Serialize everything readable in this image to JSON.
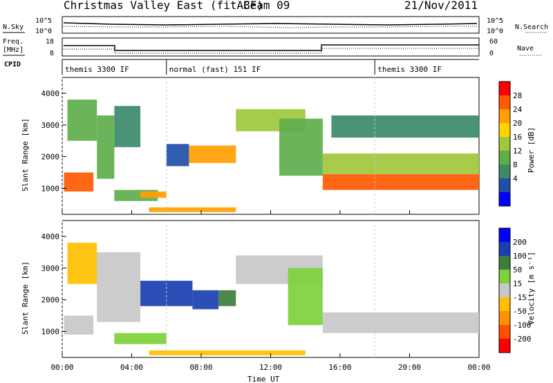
{
  "header": {
    "radar": "Christmas Valley East (fitACF)",
    "beam": "Beam 09",
    "date": "21/Nov/2011"
  },
  "labels": {
    "nsky": "N.Sky",
    "nsearch": "N.Search",
    "freq_line1": "Freq.",
    "freq_line2": "[MHz]",
    "nave": "Nave",
    "cpid": "CPID",
    "noise_left_ticks": [
      "10^5",
      "10^0"
    ],
    "noise_right_ticks": [
      "10^5",
      "10^0"
    ],
    "freq_ticks": [
      "18",
      "8"
    ],
    "nave_ticks": [
      "60",
      "0"
    ]
  },
  "cpid_segments": [
    {
      "start": 0.0,
      "end": 6.0,
      "label": "themis 3300 IF"
    },
    {
      "start": 6.0,
      "end": 18.0,
      "label": "normal (fast) 151 IF"
    },
    {
      "start": 18.0,
      "end": 24.0,
      "label": "themis 3300 IF"
    }
  ],
  "colors": {
    "power_scale": [
      "#0000ff",
      "#1f4fa8",
      "#3c8a6a",
      "#5fae4c",
      "#a0c83c",
      "#ffd500",
      "#ffa000",
      "#ff5a00",
      "#ff0000"
    ],
    "velocity_scale": [
      "#0000ff",
      "#1a3fb0",
      "#3c7f3c",
      "#7ed13a",
      "#c8c8c8",
      "#ffc000",
      "#ff9000",
      "#ff5000",
      "#ff0000"
    ],
    "ground_scatter": "#b4b4b4"
  },
  "chart_data": [
    {
      "type": "heatmap",
      "name": "power",
      "xlabel": "Time UT",
      "ylabel": "Slant Range [km]",
      "xlim": [
        0,
        24
      ],
      "ylim": [
        180,
        4500
      ],
      "xticks": [
        "00:00",
        "04:00",
        "08:00",
        "12:00",
        "16:00",
        "20:00",
        "00:00"
      ],
      "yticks": [
        1000,
        2000,
        3000,
        4000
      ],
      "colorbar_label": "Power [dB]",
      "colorbar_ticks": [
        4,
        8,
        12,
        16,
        20,
        24,
        28
      ],
      "colorbar_range": [
        0,
        30
      ],
      "regions": [
        {
          "t0": 0.1,
          "t1": 1.8,
          "r0": 900,
          "r1": 1500,
          "value": 24
        },
        {
          "t0": 0.3,
          "t1": 2.0,
          "r0": 2500,
          "r1": 3800,
          "value": 12
        },
        {
          "t0": 2.0,
          "t1": 3.0,
          "r0": 1300,
          "r1": 3300,
          "value": 10
        },
        {
          "t0": 3.0,
          "t1": 4.5,
          "r0": 2300,
          "r1": 3600,
          "value": 8
        },
        {
          "t0": 3.0,
          "t1": 5.5,
          "r0": 600,
          "r1": 950,
          "value": 10
        },
        {
          "t0": 4.5,
          "t1": 6.0,
          "r0": 700,
          "r1": 900,
          "value": 20
        },
        {
          "t0": 5.0,
          "t1": 10.0,
          "r0": 250,
          "r1": 400,
          "value": 22
        },
        {
          "t0": 6.0,
          "t1": 7.3,
          "r0": 1700,
          "r1": 2400,
          "value": 6
        },
        {
          "t0": 7.3,
          "t1": 10.0,
          "r0": 1800,
          "r1": 2350,
          "value": 22
        },
        {
          "t0": 10.0,
          "t1": 14.0,
          "r0": 2800,
          "r1": 3500,
          "value": 16
        },
        {
          "t0": 12.5,
          "t1": 15.0,
          "r0": 1400,
          "r1": 3200,
          "value": 12
        },
        {
          "t0": 15.0,
          "t1": 24.0,
          "r0": 950,
          "r1": 1450,
          "value": 26
        },
        {
          "t0": 15.0,
          "t1": 24.0,
          "r0": 1450,
          "r1": 2100,
          "value": 14
        },
        {
          "t0": 15.5,
          "t1": 24.0,
          "r0": 2600,
          "r1": 3300,
          "value": 8
        }
      ]
    },
    {
      "type": "heatmap",
      "name": "velocity",
      "xlabel": "Time UT",
      "ylabel": "Slant Range [km]",
      "xlim": [
        0,
        24
      ],
      "ylim": [
        180,
        4500
      ],
      "xticks": [
        "00:00",
        "04:00",
        "08:00",
        "12:00",
        "16:00",
        "20:00",
        "00:00"
      ],
      "yticks": [
        1000,
        2000,
        3000,
        4000
      ],
      "colorbar_label": "Velocity [m s⁻¹]",
      "colorbar_ticks": [
        200,
        100,
        50,
        15,
        -15,
        -50,
        -100,
        -200
      ],
      "colorbar_range": [
        -250,
        250
      ],
      "regions": [
        {
          "t0": 0.1,
          "t1": 1.8,
          "r0": 900,
          "r1": 1500,
          "value": 0
        },
        {
          "t0": 0.3,
          "t1": 2.0,
          "r0": 2500,
          "r1": 3800,
          "value": -20
        },
        {
          "t0": 2.0,
          "t1": 4.5,
          "r0": 1300,
          "r1": 3500,
          "value": 0
        },
        {
          "t0": 3.0,
          "t1": 6.0,
          "r0": 600,
          "r1": 950,
          "value": 30
        },
        {
          "t0": 5.0,
          "t1": 14.0,
          "r0": 250,
          "r1": 400,
          "value": -30
        },
        {
          "t0": 4.5,
          "t1": 7.5,
          "r0": 1800,
          "r1": 2600,
          "value": 180
        },
        {
          "t0": 7.5,
          "t1": 9.0,
          "r0": 1700,
          "r1": 2300,
          "value": 120
        },
        {
          "t0": 9.0,
          "t1": 10.0,
          "r0": 1800,
          "r1": 2300,
          "value": 60
        },
        {
          "t0": 10.0,
          "t1": 15.0,
          "r0": 2500,
          "r1": 3400,
          "value": 0
        },
        {
          "t0": 13.0,
          "t1": 15.0,
          "r0": 1200,
          "r1": 3000,
          "value": 40
        },
        {
          "t0": 15.0,
          "t1": 24.0,
          "r0": 950,
          "r1": 1600,
          "value": 0
        }
      ]
    }
  ]
}
